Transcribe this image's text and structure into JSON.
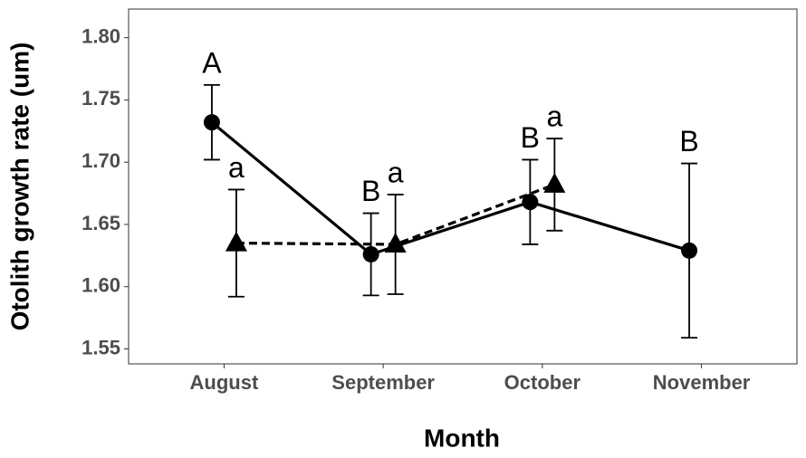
{
  "chart_data": {
    "type": "line",
    "x_label": "Month",
    "y_label": "Otolith growth rate (um)",
    "categories": [
      "August",
      "September",
      "October",
      "November"
    ],
    "ylim": [
      1.538,
      1.823
    ],
    "yticks": [
      1.55,
      {
        "value": 1.6,
        "label": "1.60"
      },
      1.65,
      {
        "value": 1.7,
        "label": "1.70"
      },
      1.75,
      {
        "value": 1.8,
        "label": "1.80"
      }
    ],
    "series": [
      {
        "color": "#000000",
        "marker": "circle",
        "linestyle": "solid",
        "values": [
          1.732,
          1.626,
          1.668,
          1.629
        ],
        "errors": [
          0.03,
          0.033,
          0.034,
          0.07
        ],
        "labels": [
          "A",
          "B",
          "B",
          "B"
        ]
      },
      {
        "color": "#000000",
        "marker": "triangle",
        "linestyle": "dashed",
        "values": [
          1.635,
          1.634,
          1.682,
          null
        ],
        "errors": [
          0.043,
          0.04,
          0.037,
          null
        ],
        "labels": [
          "a",
          "a",
          "a",
          null
        ]
      }
    ]
  }
}
